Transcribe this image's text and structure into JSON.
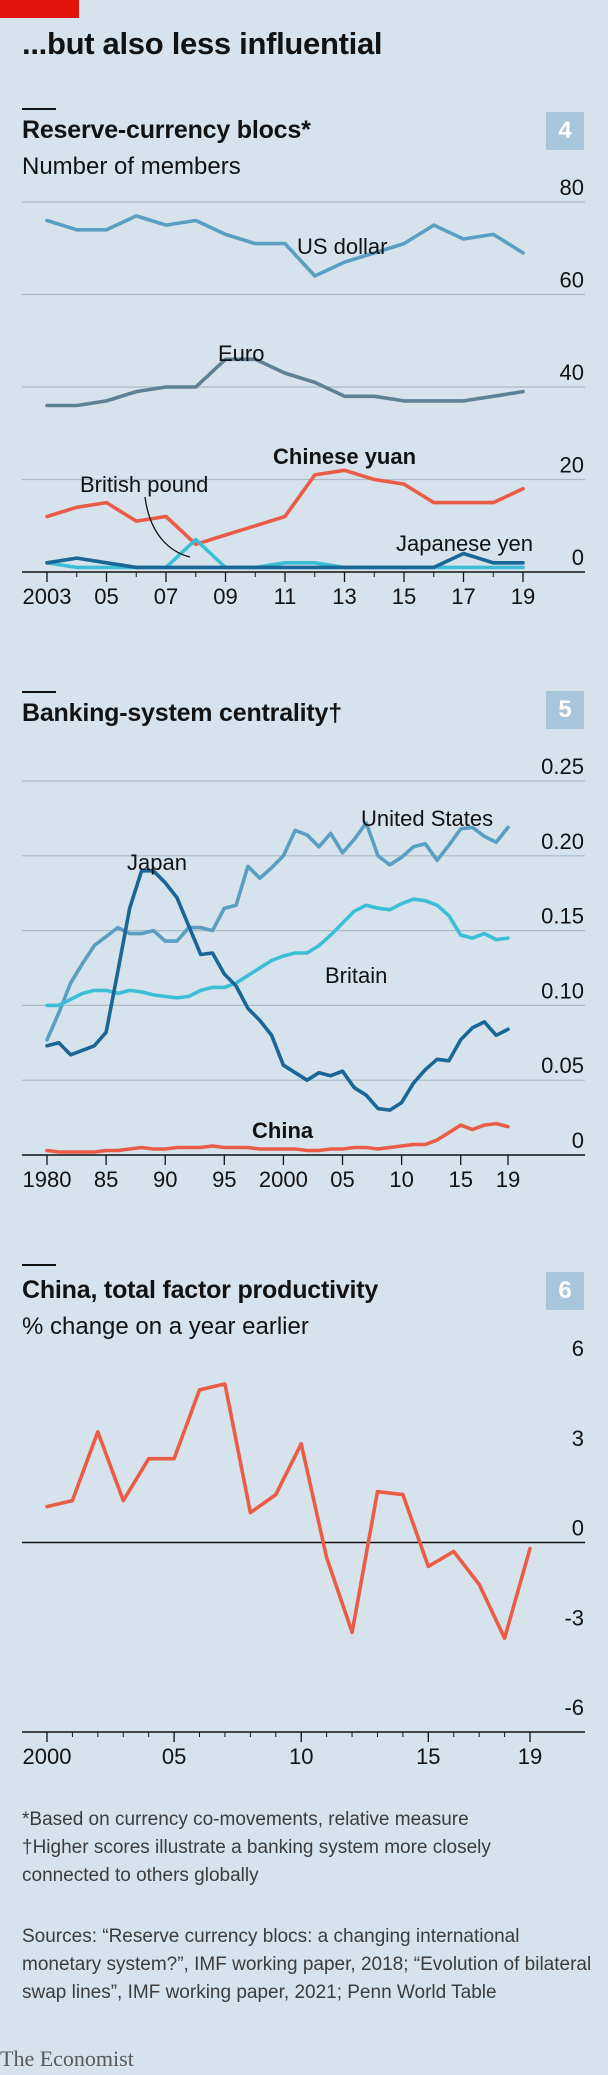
{
  "headline": "...but also less influential",
  "footnotes": [
    "*Based on currency co-movements, relative measure",
    "†Higher scores illustrate a banking system more closely connected to others globally"
  ],
  "sources": "Sources: “Reserve currency blocs: a changing international monetary system?”, IMF working paper, 2018; “Evolution of bilateral swap lines”, IMF working paper, 2021; Penn World Table",
  "brand": "The Economist",
  "colors": {
    "background": "#d7e3ec",
    "red": "#e3120b",
    "us_dollar": "#5a9ec2",
    "euro": "#5f8196",
    "chinese_yuan": "#eb5c46",
    "japanese_yen": "#1a6696",
    "british_pound": "#3cbfd6",
    "badge": "#a7c6dc"
  },
  "chart_data": [
    {
      "type": "line",
      "panel_number": "4",
      "title": "Reserve-currency blocs*",
      "subtitle": "Number of members",
      "x_tick_labels": [
        "2003",
        "05",
        "07",
        "09",
        "11",
        "13",
        "15",
        "17",
        "19"
      ],
      "x_ticks": [
        2003,
        2005,
        2007,
        2009,
        2011,
        2013,
        2015,
        2017,
        2019
      ],
      "xlim": [
        2003,
        2019
      ],
      "ylim": [
        0,
        80
      ],
      "y_ticks": [
        0,
        20,
        40,
        60,
        80
      ],
      "y_tick_labels": [
        "0",
        "20",
        "40",
        "60",
        "80"
      ],
      "grid": true,
      "axis_side": "right",
      "x": [
        2003,
        2004,
        2005,
        2006,
        2007,
        2008,
        2009,
        2010,
        2011,
        2012,
        2013,
        2014,
        2015,
        2016,
        2017,
        2018,
        2019
      ],
      "series": [
        {
          "name": "US dollar",
          "color_key": "us_dollar",
          "label_style": "normal",
          "values": [
            76,
            74,
            74,
            77,
            75,
            76,
            73,
            71,
            71,
            64,
            67,
            69,
            71,
            75,
            72,
            73,
            69
          ]
        },
        {
          "name": "Euro",
          "color_key": "euro",
          "label_style": "normal",
          "values": [
            36,
            36,
            37,
            39,
            40,
            40,
            46,
            46,
            43,
            41,
            38,
            38,
            37,
            37,
            37,
            38,
            39
          ]
        },
        {
          "name": "Chinese yuan",
          "color_key": "chinese_yuan",
          "label_style": "bold",
          "values": [
            12,
            14,
            15,
            11,
            12,
            6,
            8,
            10,
            12,
            21,
            22,
            20,
            19,
            15,
            15,
            15,
            18
          ]
        },
        {
          "name": "British pound",
          "color_key": "british_pound",
          "label_style": "normal",
          "values": [
            2,
            1,
            1,
            1,
            1,
            7,
            1,
            1,
            2,
            2,
            1,
            1,
            1,
            1,
            1,
            1,
            1
          ]
        },
        {
          "name": "Japanese yen",
          "color_key": "japanese_yen",
          "label_style": "normal",
          "values": [
            2,
            3,
            2,
            1,
            1,
            1,
            1,
            1,
            1,
            1,
            1,
            1,
            1,
            1,
            4,
            2,
            2
          ]
        }
      ]
    },
    {
      "type": "line",
      "panel_number": "5",
      "title": "Banking-system centrality†",
      "subtitle": "",
      "x_tick_labels": [
        "1980",
        "85",
        "90",
        "95",
        "2000",
        "05",
        "10",
        "15",
        "19"
      ],
      "x_ticks": [
        1980,
        1985,
        1990,
        1995,
        2000,
        2005,
        2010,
        2015,
        2019
      ],
      "xlim": [
        1980,
        2019
      ],
      "ylim": [
        0,
        0.25
      ],
      "y_ticks": [
        0,
        0.05,
        0.1,
        0.15,
        0.2,
        0.25
      ],
      "y_tick_labels": [
        "0",
        "0.05",
        "0.10",
        "0.15",
        "0.20",
        "0.25"
      ],
      "grid": true,
      "axis_side": "right",
      "series": [
        {
          "name": "United States",
          "color_key": "us_dollar",
          "label_style": "normal",
          "x": [
            1980,
            1981,
            1982,
            1983,
            1984,
            1985,
            1986,
            1987,
            1988,
            1989,
            1990,
            1991,
            1992,
            1993,
            1994,
            1995,
            1996,
            1997,
            1998,
            1999,
            2000,
            2001,
            2002,
            2003,
            2004,
            2005,
            2006,
            2007,
            2008,
            2009,
            2010,
            2011,
            2012,
            2013,
            2014,
            2015,
            2016,
            2017,
            2018,
            2019
          ],
          "values": [
            0.077,
            0.095,
            0.115,
            0.128,
            0.14,
            0.146,
            0.152,
            0.148,
            0.148,
            0.15,
            0.143,
            0.143,
            0.152,
            0.152,
            0.15,
            0.165,
            0.167,
            0.193,
            0.185,
            0.192,
            0.2,
            0.217,
            0.214,
            0.206,
            0.215,
            0.202,
            0.211,
            0.222,
            0.2,
            0.194,
            0.199,
            0.206,
            0.208,
            0.197,
            0.207,
            0.218,
            0.219,
            0.213,
            0.209,
            0.219
          ]
        },
        {
          "name": "Britain",
          "color_key": "british_pound",
          "label_style": "normal",
          "x": [
            1980,
            1981,
            1982,
            1983,
            1984,
            1985,
            1986,
            1987,
            1988,
            1989,
            1990,
            1991,
            1992,
            1993,
            1994,
            1995,
            1996,
            1997,
            1998,
            1999,
            2000,
            2001,
            2002,
            2003,
            2004,
            2005,
            2006,
            2007,
            2008,
            2009,
            2010,
            2011,
            2012,
            2013,
            2014,
            2015,
            2016,
            2017,
            2018,
            2019
          ],
          "values": [
            0.1,
            0.1,
            0.104,
            0.108,
            0.11,
            0.11,
            0.108,
            0.11,
            0.109,
            0.107,
            0.106,
            0.105,
            0.106,
            0.11,
            0.112,
            0.112,
            0.115,
            0.12,
            0.125,
            0.13,
            0.133,
            0.135,
            0.135,
            0.14,
            0.147,
            0.155,
            0.163,
            0.167,
            0.165,
            0.164,
            0.168,
            0.171,
            0.17,
            0.167,
            0.16,
            0.147,
            0.145,
            0.148,
            0.144,
            0.145
          ]
        },
        {
          "name": "Japan",
          "color_key": "japanese_yen",
          "label_style": "normal",
          "x": [
            1980,
            1981,
            1982,
            1983,
            1984,
            1985,
            1986,
            1987,
            1988,
            1989,
            1990,
            1991,
            1992,
            1993,
            1994,
            1995,
            1996,
            1997,
            1998,
            1999,
            2000,
            2001,
            2002,
            2003,
            2004,
            2005,
            2006,
            2007,
            2008,
            2009,
            2010,
            2011,
            2012,
            2013,
            2014,
            2015,
            2016,
            2017,
            2018,
            2019
          ],
          "values": [
            0.073,
            0.075,
            0.067,
            0.07,
            0.073,
            0.082,
            0.123,
            0.165,
            0.19,
            0.19,
            0.182,
            0.172,
            0.153,
            0.134,
            0.135,
            0.121,
            0.113,
            0.098,
            0.09,
            0.08,
            0.06,
            0.055,
            0.05,
            0.055,
            0.053,
            0.056,
            0.045,
            0.04,
            0.031,
            0.03,
            0.035,
            0.048,
            0.057,
            0.064,
            0.063,
            0.077,
            0.085,
            0.089,
            0.08,
            0.084
          ]
        },
        {
          "name": "China",
          "color_key": "chinese_yuan",
          "label_style": "bold",
          "x": [
            1980,
            1981,
            1982,
            1983,
            1984,
            1985,
            1986,
            1987,
            1988,
            1989,
            1990,
            1991,
            1992,
            1993,
            1994,
            1995,
            1996,
            1997,
            1998,
            1999,
            2000,
            2001,
            2002,
            2003,
            2004,
            2005,
            2006,
            2007,
            2008,
            2009,
            2010,
            2011,
            2012,
            2013,
            2014,
            2015,
            2016,
            2017,
            2018,
            2019
          ],
          "values": [
            0.003,
            0.002,
            0.002,
            0.002,
            0.002,
            0.003,
            0.003,
            0.004,
            0.005,
            0.004,
            0.004,
            0.005,
            0.005,
            0.005,
            0.006,
            0.005,
            0.005,
            0.005,
            0.004,
            0.004,
            0.004,
            0.004,
            0.003,
            0.003,
            0.004,
            0.004,
            0.005,
            0.005,
            0.004,
            0.005,
            0.006,
            0.007,
            0.007,
            0.01,
            0.015,
            0.02,
            0.017,
            0.02,
            0.021,
            0.019
          ]
        }
      ]
    },
    {
      "type": "line",
      "panel_number": "6",
      "title": "China, total factor productivity",
      "subtitle": "% change on a year earlier",
      "x_tick_labels": [
        "2000",
        "05",
        "10",
        "15",
        "19"
      ],
      "x_ticks": [
        2000,
        2005,
        2010,
        2015,
        2019
      ],
      "xlim": [
        2000,
        2019
      ],
      "ylim": [
        -6,
        6
      ],
      "y_ticks": [
        -6,
        -3,
        0,
        3,
        6
      ],
      "y_tick_labels": [
        "-6",
        "-3",
        "0",
        "3",
        "6"
      ],
      "grid": false,
      "zero_line": true,
      "axis_side": "right",
      "x": [
        2000,
        2001,
        2002,
        2003,
        2004,
        2005,
        2006,
        2007,
        2008,
        2009,
        2010,
        2011,
        2012,
        2013,
        2014,
        2015,
        2016,
        2017,
        2018,
        2019
      ],
      "series": [
        {
          "name": "",
          "color_key": "chinese_yuan",
          "values": [
            1.2,
            1.4,
            3.7,
            1.4,
            2.8,
            2.8,
            5.1,
            5.3,
            1.0,
            1.6,
            3.3,
            -0.5,
            -3.0,
            1.7,
            1.6,
            -0.8,
            -0.3,
            -1.4,
            -3.2,
            -0.2
          ]
        }
      ]
    }
  ]
}
